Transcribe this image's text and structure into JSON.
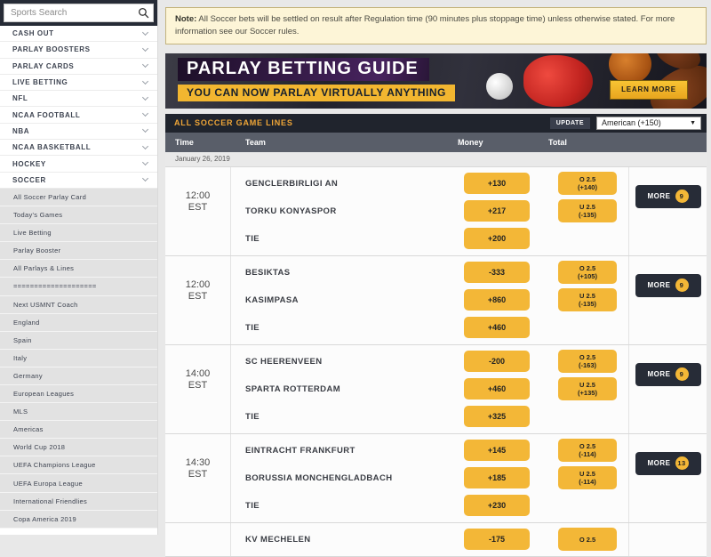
{
  "sidebar": {
    "search_placeholder": "Sports Search",
    "nav_items": [
      "CASH OUT",
      "PARLAY BOOSTERS",
      "PARLAY CARDS",
      "LIVE BETTING",
      "NFL",
      "NCAA FOOTBALL",
      "NBA",
      "NCAA BASKETBALL",
      "HOCKEY",
      "SOCCER"
    ],
    "sub_items": [
      "All Soccer Parlay Card",
      "Today's Games",
      "Live Betting",
      "Parlay Booster",
      "All Parlays & Lines",
      "====================",
      "Next USMNT Coach",
      "England",
      "Spain",
      "Italy",
      "Germany",
      "European Leagues",
      "MLS",
      "Americas",
      "World Cup 2018",
      "UEFA Champions League",
      "UEFA Europa League",
      "International Friendlies",
      "Copa America 2019"
    ]
  },
  "note": {
    "prefix": "Note:",
    "text": " All Soccer bets will be settled on result after Regulation time (90 minutes plus stoppage time) unless otherwise stated. For more information see our Soccer rules."
  },
  "banner": {
    "title": "PARLAY BETTING GUIDE",
    "subtitle": "YOU CAN NOW PARLAY VIRTUALLY ANYTHING",
    "button": "LEARN MORE"
  },
  "lines": {
    "title": "ALL SOCCER GAME LINES",
    "update_label": "UPDATE",
    "odds_format": "American (+150)",
    "dropdown_arrow": "▼",
    "more_label": "MORE",
    "columns": {
      "time": "Time",
      "team": "Team",
      "money": "Money",
      "total": "Total"
    },
    "date": "January 26, 2019",
    "games": [
      {
        "time": "12:00",
        "tz": "EST",
        "more": "9",
        "rows": [
          {
            "team": "GENCLERBIRLIGI AN",
            "money": "+130",
            "total": [
              "O 2.5",
              "(+140)"
            ]
          },
          {
            "team": "TORKU KONYASPOR",
            "money": "+217",
            "total": [
              "U 2.5",
              "(-135)"
            ]
          },
          {
            "team": "TIE",
            "money": "+200",
            "total": null
          }
        ]
      },
      {
        "time": "12:00",
        "tz": "EST",
        "more": "9",
        "rows": [
          {
            "team": "BESIKTAS",
            "money": "-333",
            "total": [
              "O 2.5",
              "(+105)"
            ]
          },
          {
            "team": "KASIMPASA",
            "money": "+860",
            "total": [
              "U 2.5",
              "(-135)"
            ]
          },
          {
            "team": "TIE",
            "money": "+460",
            "total": null
          }
        ]
      },
      {
        "time": "14:00",
        "tz": "EST",
        "more": "9",
        "rows": [
          {
            "team": "SC HEERENVEEN",
            "money": "-200",
            "total": [
              "O 2.5",
              "(-163)"
            ]
          },
          {
            "team": "SPARTA ROTTERDAM",
            "money": "+460",
            "total": [
              "U 2.5",
              "(+135)"
            ]
          },
          {
            "team": "TIE",
            "money": "+325",
            "total": null
          }
        ]
      },
      {
        "time": "14:30",
        "tz": "EST",
        "more": "13",
        "rows": [
          {
            "team": "EINTRACHT FRANKFURT",
            "money": "+145",
            "total": [
              "O 2.5",
              "(-114)"
            ]
          },
          {
            "team": "BORUSSIA MONCHENGLADBACH",
            "money": "+185",
            "total": [
              "U 2.5",
              "(-114)"
            ]
          },
          {
            "team": "TIE",
            "money": "+230",
            "total": null
          }
        ]
      },
      {
        "time": "",
        "tz": "",
        "more": null,
        "rows": [
          {
            "team": "KV MECHELEN",
            "money": "-175",
            "total": [
              "O 2.5",
              ""
            ]
          }
        ]
      }
    ]
  },
  "colors": {
    "accent_gold": "#f3b737",
    "header_dark": "#20242d",
    "sidebar_dark": "#262b36",
    "col_header_gray": "#595e69",
    "note_bg": "#fdf5d7",
    "title_orange": "#f0a637"
  }
}
